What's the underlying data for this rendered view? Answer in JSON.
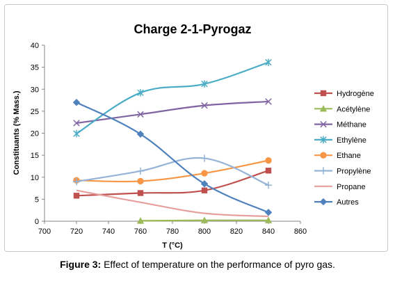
{
  "caption": {
    "label": "Figure 3:",
    "text": "Effect of temperature on the performance of pyro gas."
  },
  "chart_data": {
    "type": "line",
    "title": "Charge 2-1-Pyrogaz",
    "xlabel": "T (°C)",
    "ylabel": "Constituants (% Mass.)",
    "xlim": [
      700,
      860
    ],
    "ylim": [
      0,
      40
    ],
    "xticks": [
      700,
      720,
      740,
      760,
      780,
      800,
      820,
      840,
      860
    ],
    "yticks": [
      0,
      5,
      10,
      15,
      20,
      25,
      30,
      35,
      40
    ],
    "grid": false,
    "legend_position": "right",
    "series": [
      {
        "name": "Hydrogène",
        "color": "#c0504d",
        "marker": "square",
        "x": [
          720,
          760,
          800,
          840
        ],
        "values": [
          5.8,
          6.4,
          7.0,
          11.5
        ]
      },
      {
        "name": "Acétylène",
        "color": "#9bbb59",
        "marker": "triangle",
        "x": [
          760,
          800,
          840
        ],
        "values": [
          0.1,
          0.2,
          0.2
        ]
      },
      {
        "name": "Méthane",
        "color": "#8064a2",
        "marker": "x",
        "x": [
          720,
          760,
          800,
          840
        ],
        "values": [
          22.3,
          24.3,
          26.3,
          27.2
        ]
      },
      {
        "name": "Ethylène",
        "color": "#4bacc6",
        "marker": "star",
        "x": [
          720,
          760,
          800,
          840
        ],
        "values": [
          19.9,
          29.2,
          31.2,
          36.1
        ]
      },
      {
        "name": "Ethane",
        "color": "#f79646",
        "marker": "circle",
        "x": [
          720,
          760,
          800,
          840
        ],
        "values": [
          9.3,
          9.1,
          10.9,
          13.8
        ]
      },
      {
        "name": "Propylène",
        "color": "#95b3d7",
        "marker": "plus",
        "x": [
          720,
          760,
          800,
          840
        ],
        "values": [
          9.0,
          11.4,
          14.3,
          8.2
        ]
      },
      {
        "name": "Propane",
        "color": "#e6a09c",
        "marker": "none",
        "x": [
          720,
          760,
          800,
          840
        ],
        "values": [
          7.0,
          4.3,
          1.8,
          1.1
        ]
      },
      {
        "name": "Autres",
        "color": "#4f81bd",
        "marker": "diamond",
        "x": [
          720,
          760,
          800,
          840
        ],
        "values": [
          27.0,
          19.8,
          8.5,
          2.0
        ]
      }
    ]
  }
}
